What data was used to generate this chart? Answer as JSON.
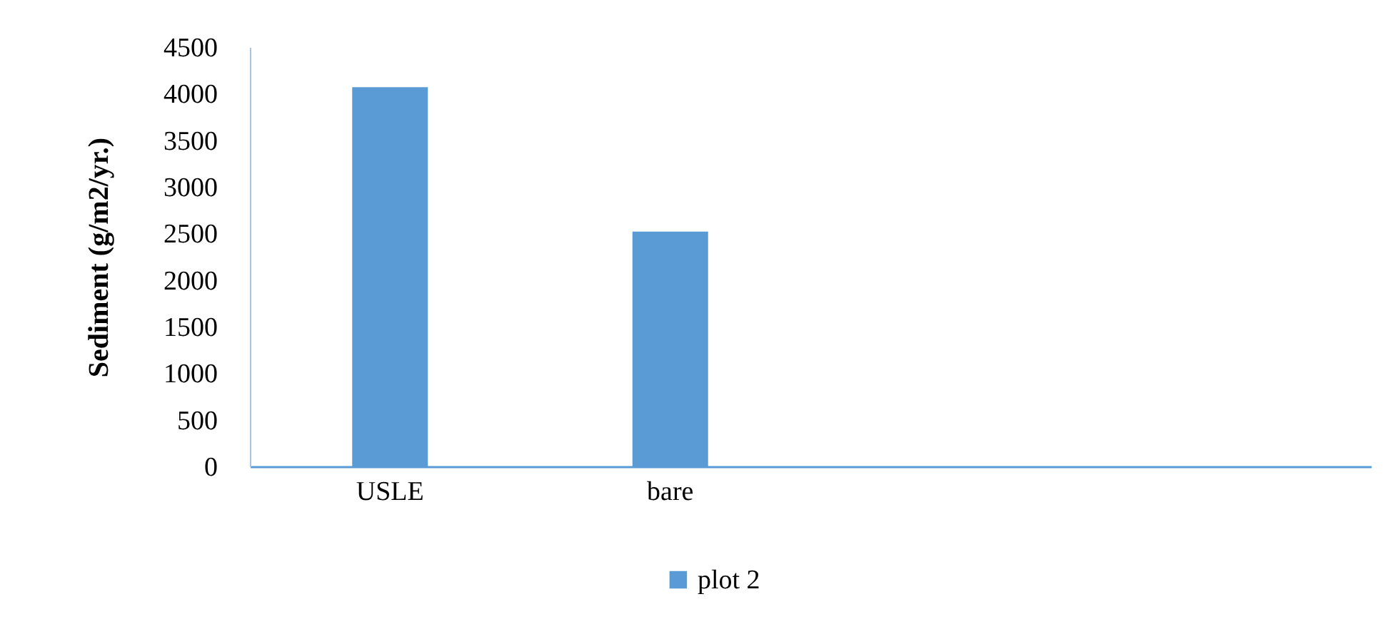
{
  "chart_data": {
    "type": "bar",
    "categories": [
      "USLE",
      "bare",
      null,
      null
    ],
    "series": [
      {
        "name": "plot 2",
        "color": "#5b9bd5",
        "values": [
          4070,
          2520,
          null,
          null
        ]
      }
    ],
    "ylabel": "Sediment (g/m2/yr.)",
    "ylim": [
      0,
      4500
    ],
    "yticks": [
      0,
      500,
      1000,
      1500,
      2000,
      2500,
      3000,
      3500,
      4000,
      4500
    ],
    "legend": "bottom"
  }
}
